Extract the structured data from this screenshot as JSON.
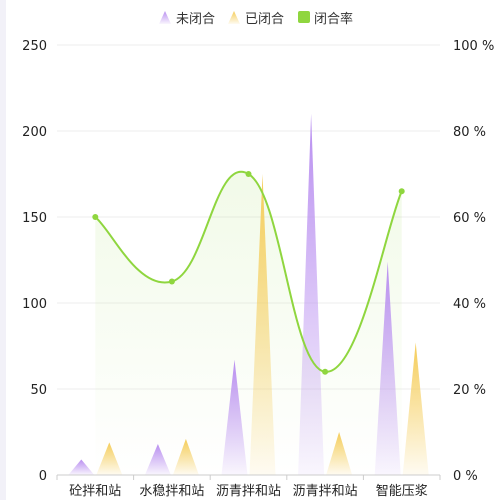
{
  "colors": {
    "unclosed": "#b98ff0",
    "closed": "#f5cd5a",
    "rate": "#8fd63f",
    "grid": "#eeeeee",
    "axis": "#cccccc"
  },
  "legend": [
    {
      "key": "unclosed",
      "label": "未闭合",
      "color": "#b98ff0"
    },
    {
      "key": "closed",
      "label": "已闭合",
      "color": "#f5cd5a"
    },
    {
      "key": "rate",
      "label": "闭合率",
      "color": "#8fd63f"
    }
  ],
  "chart_data": {
    "type": "bar",
    "categories": [
      "砼拌和站",
      "水稳拌和站",
      "沥青拌和站",
      "沥青拌和站",
      "智能压浆"
    ],
    "series": [
      {
        "name": "未闭合",
        "type": "pictorial-bar",
        "axis": "left",
        "values": [
          9,
          18,
          67,
          210,
          124
        ]
      },
      {
        "name": "已闭合",
        "type": "pictorial-bar",
        "axis": "left",
        "values": [
          19,
          21,
          175,
          25,
          77
        ]
      },
      {
        "name": "闭合率",
        "type": "line",
        "axis": "right",
        "values": [
          60,
          45,
          70,
          24,
          66
        ]
      }
    ],
    "y_left": {
      "min": 0,
      "max": 250,
      "ticks": [
        "0",
        "50",
        "100",
        "150",
        "200",
        "250"
      ]
    },
    "y_right": {
      "min": 0,
      "max": 100,
      "ticks": [
        "0 %",
        "20 %",
        "40 %",
        "60 %",
        "80 %",
        "100 %"
      ]
    },
    "grid": true,
    "legend_position": "top-center"
  }
}
